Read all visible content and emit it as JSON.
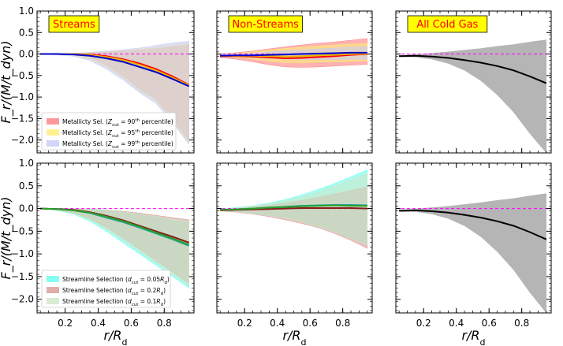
{
  "chart_data": {
    "type": "area",
    "layout": "2x3 grid",
    "x_axis": {
      "label": "r/R_d",
      "label_main": "r/R",
      "label_sub": "d",
      "lim": [
        0.03,
        0.98
      ],
      "ticks": [
        0.2,
        0.4,
        0.6,
        0.8
      ],
      "tick_labels": [
        "0.2",
        "0.4",
        "0.6",
        "0.8"
      ]
    },
    "y_axis": {
      "label": "F_r/(M/t_dyn)",
      "lim": [
        -2.3,
        1.0
      ],
      "ticks": [
        1.0,
        0.5,
        0.0,
        -0.5,
        -1.0,
        -1.5,
        -2.0
      ],
      "tick_labels": [
        "1.0",
        "0.5",
        "0.0",
        "−0.5",
        "−1.0",
        "−1.5",
        "−2.0"
      ]
    },
    "column_titles": [
      "Streams",
      "Non-Streams",
      "All Cold Gas"
    ],
    "x": [
      0.05,
      0.15,
      0.25,
      0.35,
      0.45,
      0.55,
      0.65,
      0.75,
      0.85,
      0.95
    ],
    "rows": [
      {
        "legend": [
          {
            "pre": "Metallicty Sel. (",
            "cut": "90",
            "post": " percentile)",
            "color": "#ff7f7f"
          },
          {
            "pre": "Metallicty Sel. (",
            "cut": "95",
            "post": " percentile)",
            "color": "#ffee77"
          },
          {
            "pre": "Metallicty Sel. (",
            "cut": "99",
            "post": " percentile)",
            "color": "#c8ccf5"
          }
        ],
        "legend_math": "Z",
        "legend_sub": "cut",
        "legend_sup": "th",
        "panels": [
          {
            "title": "Streams",
            "series": [
              {
                "name": "90th",
                "line_color": "#ff0000",
                "fill_color": "#ff7f7f",
                "mean": [
                  0,
                  0,
                  0,
                  -0.01,
                  -0.05,
                  -0.12,
                  -0.22,
                  -0.35,
                  -0.52,
                  -0.72
                ],
                "lower": [
                  0,
                  0,
                  -0.02,
                  -0.08,
                  -0.25,
                  -0.5,
                  -0.8,
                  -1.05,
                  -1.5,
                  -2.0
                ],
                "upper": [
                  0,
                  0,
                  0.01,
                  0.02,
                  0.04,
                  0.06,
                  0.09,
                  0.12,
                  0.16,
                  0.2
                ]
              },
              {
                "name": "95th",
                "line_color": "#e8b800",
                "fill_color": "#ffee77",
                "mean": [
                  0,
                  0,
                  0,
                  -0.02,
                  -0.07,
                  -0.14,
                  -0.25,
                  -0.38,
                  -0.55,
                  -0.73
                ],
                "lower": [
                  0,
                  -0.01,
                  -0.03,
                  -0.12,
                  -0.3,
                  -0.55,
                  -0.85,
                  -1.1,
                  -1.55,
                  -2.1
                ],
                "upper": [
                  0,
                  0,
                  0.01,
                  0.03,
                  0.05,
                  0.08,
                  0.11,
                  0.15,
                  0.2,
                  0.24
                ]
              },
              {
                "name": "99th",
                "line_color": "#0000cc",
                "fill_color": "#c8ccf5",
                "mean": [
                  0,
                  0,
                  -0.01,
                  -0.04,
                  -0.1,
                  -0.18,
                  -0.3,
                  -0.42,
                  -0.58,
                  -0.75
                ],
                "lower": [
                  0,
                  -0.02,
                  -0.05,
                  -0.15,
                  -0.35,
                  -0.6,
                  -0.9,
                  -1.15,
                  -1.6,
                  -2.1
                ],
                "upper": [
                  0,
                  0.01,
                  0.02,
                  0.04,
                  0.07,
                  0.1,
                  0.14,
                  0.2,
                  0.26,
                  0.3
                ]
              }
            ]
          },
          {
            "title": "Non-Streams",
            "series": [
              {
                "name": "90th",
                "line_color": "#ff0000",
                "fill_color": "#ff7f7f",
                "mean": [
                  -0.05,
                  -0.05,
                  -0.06,
                  -0.08,
                  -0.1,
                  -0.09,
                  -0.07,
                  -0.05,
                  -0.02,
                  0.0
                ],
                "lower": [
                  -0.08,
                  -0.12,
                  -0.18,
                  -0.25,
                  -0.3,
                  -0.31,
                  -0.3,
                  -0.28,
                  -0.26,
                  -0.24
                ],
                "upper": [
                  0.0,
                  0.03,
                  0.07,
                  0.12,
                  0.17,
                  0.21,
                  0.25,
                  0.28,
                  0.32,
                  0.36
                ]
              },
              {
                "name": "95th",
                "line_color": "#e8b800",
                "fill_color": "#ffee77",
                "mean": [
                  -0.04,
                  -0.04,
                  -0.04,
                  -0.05,
                  -0.06,
                  -0.05,
                  -0.03,
                  -0.02,
                  0.0,
                  0.01
                ],
                "lower": [
                  -0.06,
                  -0.08,
                  -0.12,
                  -0.17,
                  -0.2,
                  -0.2,
                  -0.19,
                  -0.18,
                  -0.17,
                  -0.16
                ],
                "upper": [
                  0.0,
                  0.02,
                  0.05,
                  0.09,
                  0.13,
                  0.16,
                  0.19,
                  0.21,
                  0.23,
                  0.25
                ]
              },
              {
                "name": "99th",
                "line_color": "#0000cc",
                "fill_color": "#c8ccf5",
                "mean": [
                  -0.04,
                  -0.03,
                  -0.03,
                  -0.02,
                  -0.01,
                  0.0,
                  0.01,
                  0.02,
                  0.03,
                  0.03
                ],
                "lower": [
                  -0.05,
                  -0.06,
                  -0.08,
                  -0.1,
                  -0.12,
                  -0.13,
                  -0.13,
                  -0.13,
                  -0.12,
                  -0.12
                ],
                "upper": [
                  -0.02,
                  0.0,
                  0.02,
                  0.05,
                  0.08,
                  0.1,
                  0.12,
                  0.14,
                  0.16,
                  0.17
                ]
              }
            ]
          },
          {
            "title": "All Cold Gas",
            "series": [
              {
                "name": "all",
                "line_color": "#000000",
                "fill_color": "#b5b5b5",
                "mean": [
                  -0.05,
                  -0.04,
                  -0.06,
                  -0.09,
                  -0.14,
                  -0.2,
                  -0.28,
                  -0.38,
                  -0.52,
                  -0.68
                ],
                "lower": [
                  -0.06,
                  -0.07,
                  -0.12,
                  -0.22,
                  -0.38,
                  -0.62,
                  -0.95,
                  -1.35,
                  -1.85,
                  -2.3
                ],
                "upper": [
                  -0.03,
                  -0.01,
                  0.02,
                  0.05,
                  0.09,
                  0.13,
                  0.18,
                  0.22,
                  0.28,
                  0.33
                ]
              }
            ]
          }
        ]
      },
      {
        "legend": [
          {
            "pre": "Streamline Selection (",
            "cut": "0.05",
            "post": ")",
            "color": "#66ffee"
          },
          {
            "pre": "Streamline Selection (",
            "cut": "0.2",
            "post": ")",
            "color": "#d89a95"
          },
          {
            "pre": "Streamline Selection (",
            "cut": "0.1",
            "post": ")",
            "color": "#cfe6c8"
          }
        ],
        "legend_math": "d",
        "legend_sub": "cut",
        "legend_unit": "R",
        "legend_unit_sub": "d",
        "panels": [
          {
            "title": "Streams",
            "series": [
              {
                "name": "0.05",
                "line_color": "#1fa5a0",
                "fill_color": "#66ffee",
                "mean": [
                  0,
                  -0.01,
                  -0.04,
                  -0.1,
                  -0.2,
                  -0.3,
                  -0.42,
                  -0.55,
                  -0.68,
                  -0.82
                ],
                "lower": [
                  0,
                  -0.04,
                  -0.12,
                  -0.28,
                  -0.5,
                  -0.75,
                  -1.0,
                  -1.25,
                  -1.5,
                  -1.75
                ],
                "upper": [
                  0,
                  0,
                  0,
                  -0.01,
                  -0.04,
                  -0.08,
                  -0.14,
                  -0.2,
                  -0.26,
                  -0.32
                ]
              },
              {
                "name": "0.2",
                "line_color": "#8b1a1a",
                "fill_color": "#d89a95",
                "mean": [
                  0,
                  -0.01,
                  -0.03,
                  -0.08,
                  -0.16,
                  -0.26,
                  -0.38,
                  -0.5,
                  -0.62,
                  -0.75
                ],
                "lower": [
                  0,
                  -0.03,
                  -0.1,
                  -0.22,
                  -0.42,
                  -0.65,
                  -0.9,
                  -1.15,
                  -1.4,
                  -1.65
                ],
                "upper": [
                  0,
                  0,
                  0,
                  -0.01,
                  -0.03,
                  -0.06,
                  -0.1,
                  -0.15,
                  -0.2,
                  -0.25
                ]
              },
              {
                "name": "0.1",
                "line_color": "#2a9d2a",
                "fill_color": "#cfe6c8",
                "mean": [
                  0,
                  -0.01,
                  -0.04,
                  -0.09,
                  -0.18,
                  -0.28,
                  -0.4,
                  -0.53,
                  -0.66,
                  -0.8
                ],
                "lower": [
                  0,
                  -0.03,
                  -0.11,
                  -0.25,
                  -0.46,
                  -0.7,
                  -0.95,
                  -1.2,
                  -1.45,
                  -1.7
                ],
                "upper": [
                  0,
                  0,
                  0,
                  -0.01,
                  -0.03,
                  -0.07,
                  -0.12,
                  -0.17,
                  -0.23,
                  -0.28
                ]
              }
            ]
          },
          {
            "title": "Non-Streams",
            "series": [
              {
                "name": "0.05",
                "line_color": "#1fa5a0",
                "fill_color": "#66ffee",
                "mean": [
                  -0.03,
                  -0.02,
                  0.0,
                  0.02,
                  0.04,
                  0.06,
                  0.07,
                  0.08,
                  0.08,
                  0.07
                ],
                "lower": [
                  -0.04,
                  -0.06,
                  -0.1,
                  -0.15,
                  -0.2,
                  -0.28,
                  -0.38,
                  -0.5,
                  -0.65,
                  -0.78
                ],
                "upper": [
                  -0.01,
                  0.02,
                  0.06,
                  0.12,
                  0.2,
                  0.3,
                  0.42,
                  0.55,
                  0.7,
                  0.85
                ]
              },
              {
                "name": "0.2",
                "line_color": "#8b1a1a",
                "fill_color": "#d89a95",
                "mean": [
                  -0.04,
                  -0.03,
                  -0.02,
                  -0.01,
                  0.0,
                  0.01,
                  0.01,
                  0.01,
                  0.01,
                  0.0
                ],
                "lower": [
                  -0.05,
                  -0.08,
                  -0.12,
                  -0.18,
                  -0.25,
                  -0.33,
                  -0.42,
                  -0.55,
                  -0.7,
                  -0.88
                ],
                "upper": [
                  -0.02,
                  0.0,
                  0.03,
                  0.07,
                  0.12,
                  0.18,
                  0.25,
                  0.32,
                  0.4,
                  0.48
                ]
              },
              {
                "name": "0.1",
                "line_color": "#2a9d2a",
                "fill_color": "#cfe6c8",
                "mean": [
                  -0.03,
                  -0.02,
                  0.0,
                  0.02,
                  0.03,
                  0.05,
                  0.06,
                  0.07,
                  0.06,
                  0.06
                ],
                "lower": [
                  -0.04,
                  -0.07,
                  -0.11,
                  -0.16,
                  -0.22,
                  -0.3,
                  -0.4,
                  -0.52,
                  -0.66,
                  -0.8
                ],
                "upper": [
                  -0.01,
                  0.01,
                  0.05,
                  0.1,
                  0.17,
                  0.26,
                  0.37,
                  0.5,
                  0.64,
                  0.78
                ]
              }
            ]
          },
          {
            "title": "All Cold Gas",
            "series": [
              {
                "name": "all",
                "line_color": "#000000",
                "fill_color": "#b5b5b5",
                "mean": [
                  -0.05,
                  -0.04,
                  -0.06,
                  -0.09,
                  -0.14,
                  -0.2,
                  -0.28,
                  -0.38,
                  -0.52,
                  -0.68
                ],
                "lower": [
                  -0.06,
                  -0.07,
                  -0.12,
                  -0.22,
                  -0.38,
                  -0.62,
                  -0.95,
                  -1.35,
                  -1.85,
                  -2.3
                ],
                "upper": [
                  -0.03,
                  -0.01,
                  0.02,
                  0.05,
                  0.09,
                  0.13,
                  0.18,
                  0.22,
                  0.28,
                  0.33
                ]
              }
            ]
          }
        ]
      }
    ]
  }
}
